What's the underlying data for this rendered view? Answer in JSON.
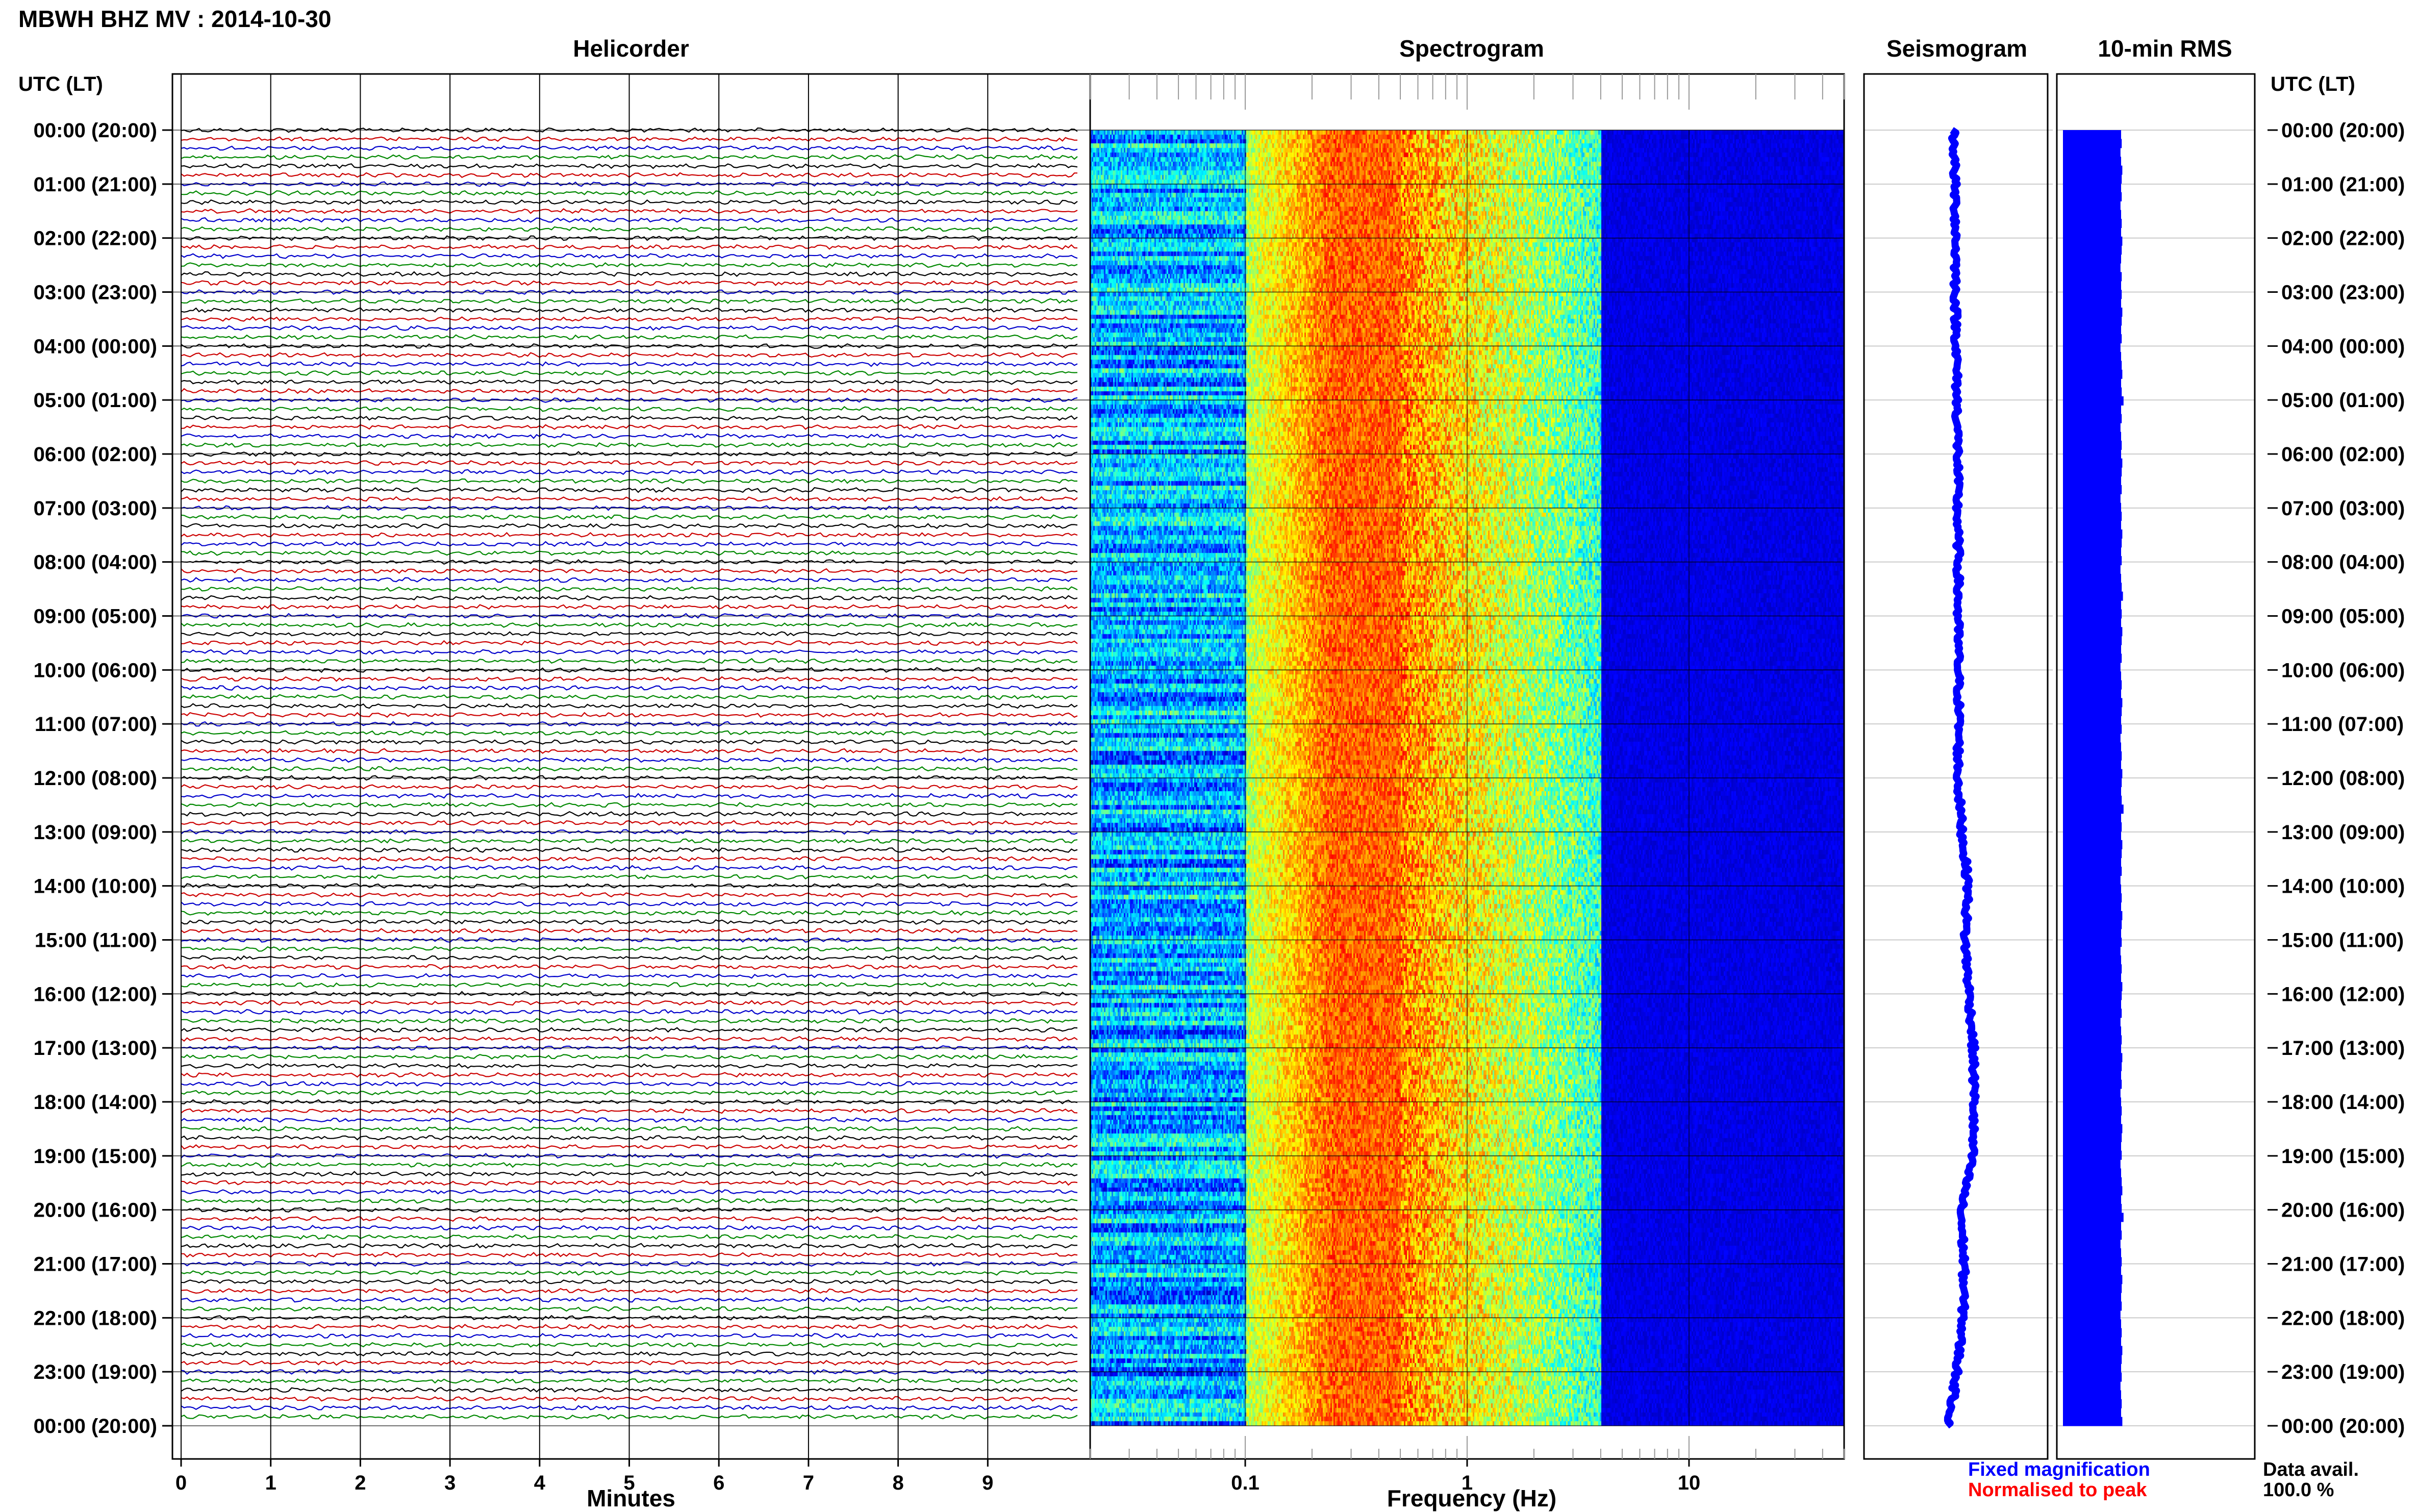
{
  "header": {
    "station_title": "MBWH BHZ MV : 2014-10-30",
    "left_axis_label": "UTC (LT)",
    "right_axis_label": "UTC (LT)"
  },
  "panels": {
    "helicorder": "Helicorder",
    "spectrogram": "Spectrogram",
    "seismogram": "Seismogram",
    "rms": "10-min RMS"
  },
  "axes": {
    "minutes_label": "Minutes",
    "frequency_label": "Frequency (Hz)",
    "minute_ticks": [
      "0",
      "1",
      "2",
      "3",
      "4",
      "5",
      "6",
      "7",
      "8",
      "9"
    ],
    "frequency_ticks": [
      "0.1",
      "1",
      "10"
    ]
  },
  "time_labels": [
    "00:00 (20:00)",
    "01:00 (21:00)",
    "02:00 (22:00)",
    "03:00 (23:00)",
    "04:00 (00:00)",
    "05:00 (01:00)",
    "06:00 (02:00)",
    "07:00 (03:00)",
    "08:00 (04:00)",
    "09:00 (05:00)",
    "10:00 (06:00)",
    "11:00 (07:00)",
    "12:00 (08:00)",
    "13:00 (09:00)",
    "14:00 (10:00)",
    "15:00 (11:00)",
    "16:00 (12:00)",
    "17:00 (13:00)",
    "18:00 (14:00)",
    "19:00 (15:00)",
    "20:00 (16:00)",
    "21:00 (17:00)",
    "22:00 (18:00)",
    "23:00 (19:00)",
    "00:00 (20:00)"
  ],
  "legend": {
    "fixed": "Fixed magnification",
    "normalised": "Normalised to peak",
    "fixed_color": "#0000ff",
    "normalised_color": "#ff0000"
  },
  "availability": {
    "label": "Data avail.",
    "value": "100.0 %"
  },
  "colors": {
    "trace_cycle": [
      "#000000",
      "#cc0000",
      "#0000cc",
      "#008800"
    ],
    "seismogram": "#0000ff",
    "rms": "#0000ff"
  },
  "chart_data": {
    "type": "heatmap",
    "x_range_minutes": [
      0,
      10
    ],
    "freq_range_hz": [
      0.02,
      50
    ],
    "freq_scale": "log",
    "time_range_hours": [
      0,
      24
    ],
    "traces_per_hour": 6,
    "rms_relative": [
      0.95,
      0.96,
      0.94,
      0.95,
      0.97,
      0.96,
      0.95,
      0.96,
      0.94,
      0.95,
      0.96,
      0.95,
      0.97,
      0.96,
      0.95,
      0.94,
      0.96,
      0.95,
      0.96,
      0.95,
      0.97,
      0.96,
      0.95,
      0.96,
      0.94,
      0.95,
      0.96,
      0.97,
      0.95,
      0.96,
      0.99,
      0.95,
      0.96,
      0.94,
      0.95,
      0.96,
      0.95,
      0.97,
      0.96,
      0.95,
      0.96,
      0.94,
      0.95,
      0.96,
      0.95,
      0.97,
      0.96,
      0.95,
      0.96,
      0.94,
      0.95,
      0.96,
      0.98,
      0.95,
      0.96,
      0.95,
      0.97,
      0.96,
      0.95,
      0.96,
      0.94,
      0.95,
      0.96,
      0.95,
      0.97,
      0.96,
      0.95,
      0.96,
      0.94,
      0.95,
      0.96,
      0.95,
      0.97,
      0.96,
      0.95,
      0.96,
      0.99,
      0.95,
      0.96,
      0.95,
      0.97,
      0.96,
      0.95,
      0.96,
      0.94,
      0.95,
      0.96,
      0.95,
      0.97,
      0.96,
      0.95,
      0.96,
      0.94,
      0.95,
      0.96,
      0.95,
      0.97,
      0.96,
      0.95,
      0.96,
      0.94,
      0.95,
      0.96,
      0.95,
      0.97,
      0.96,
      0.95,
      0.96,
      0.94,
      0.95,
      0.96,
      0.95,
      0.97,
      0.96,
      0.95,
      0.96,
      0.94,
      0.95,
      0.96,
      0.97,
      0.95,
      0.96,
      0.99,
      0.95,
      0.96,
      0.94,
      0.95,
      0.96,
      0.95,
      0.97,
      0.96,
      0.95,
      0.96,
      0.94,
      0.95,
      0.96,
      0.95,
      0.97,
      0.96,
      0.95,
      0.96,
      0.94,
      0.95,
      0.96,
      0.95,
      0.97
    ]
  }
}
